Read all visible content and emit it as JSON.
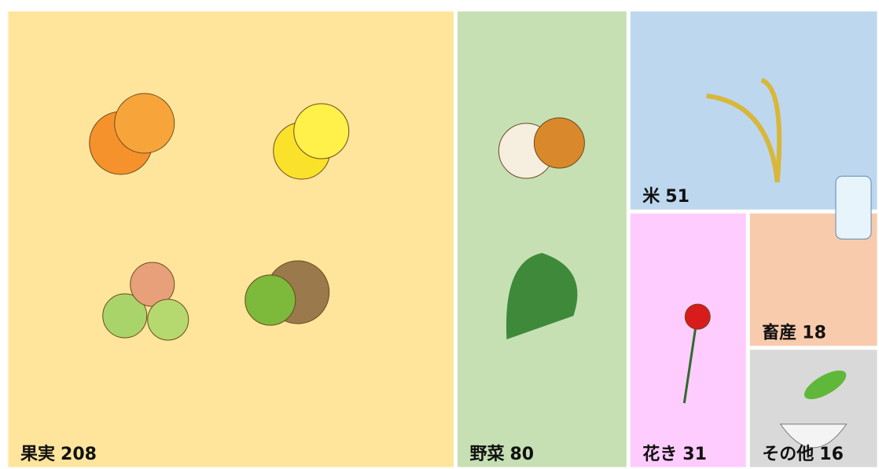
{
  "chart_data": {
    "type": "treemap",
    "categories": [
      "果実",
      "野菜",
      "米",
      "花き",
      "畜産",
      "その他"
    ],
    "values": [
      208,
      80,
      51,
      31,
      18,
      16
    ],
    "colors": [
      "#ffe59c",
      "#c6e0b4",
      "#bdd7ee",
      "#ffccff",
      "#f8cbad",
      "#d9d9d9"
    ]
  }
}
